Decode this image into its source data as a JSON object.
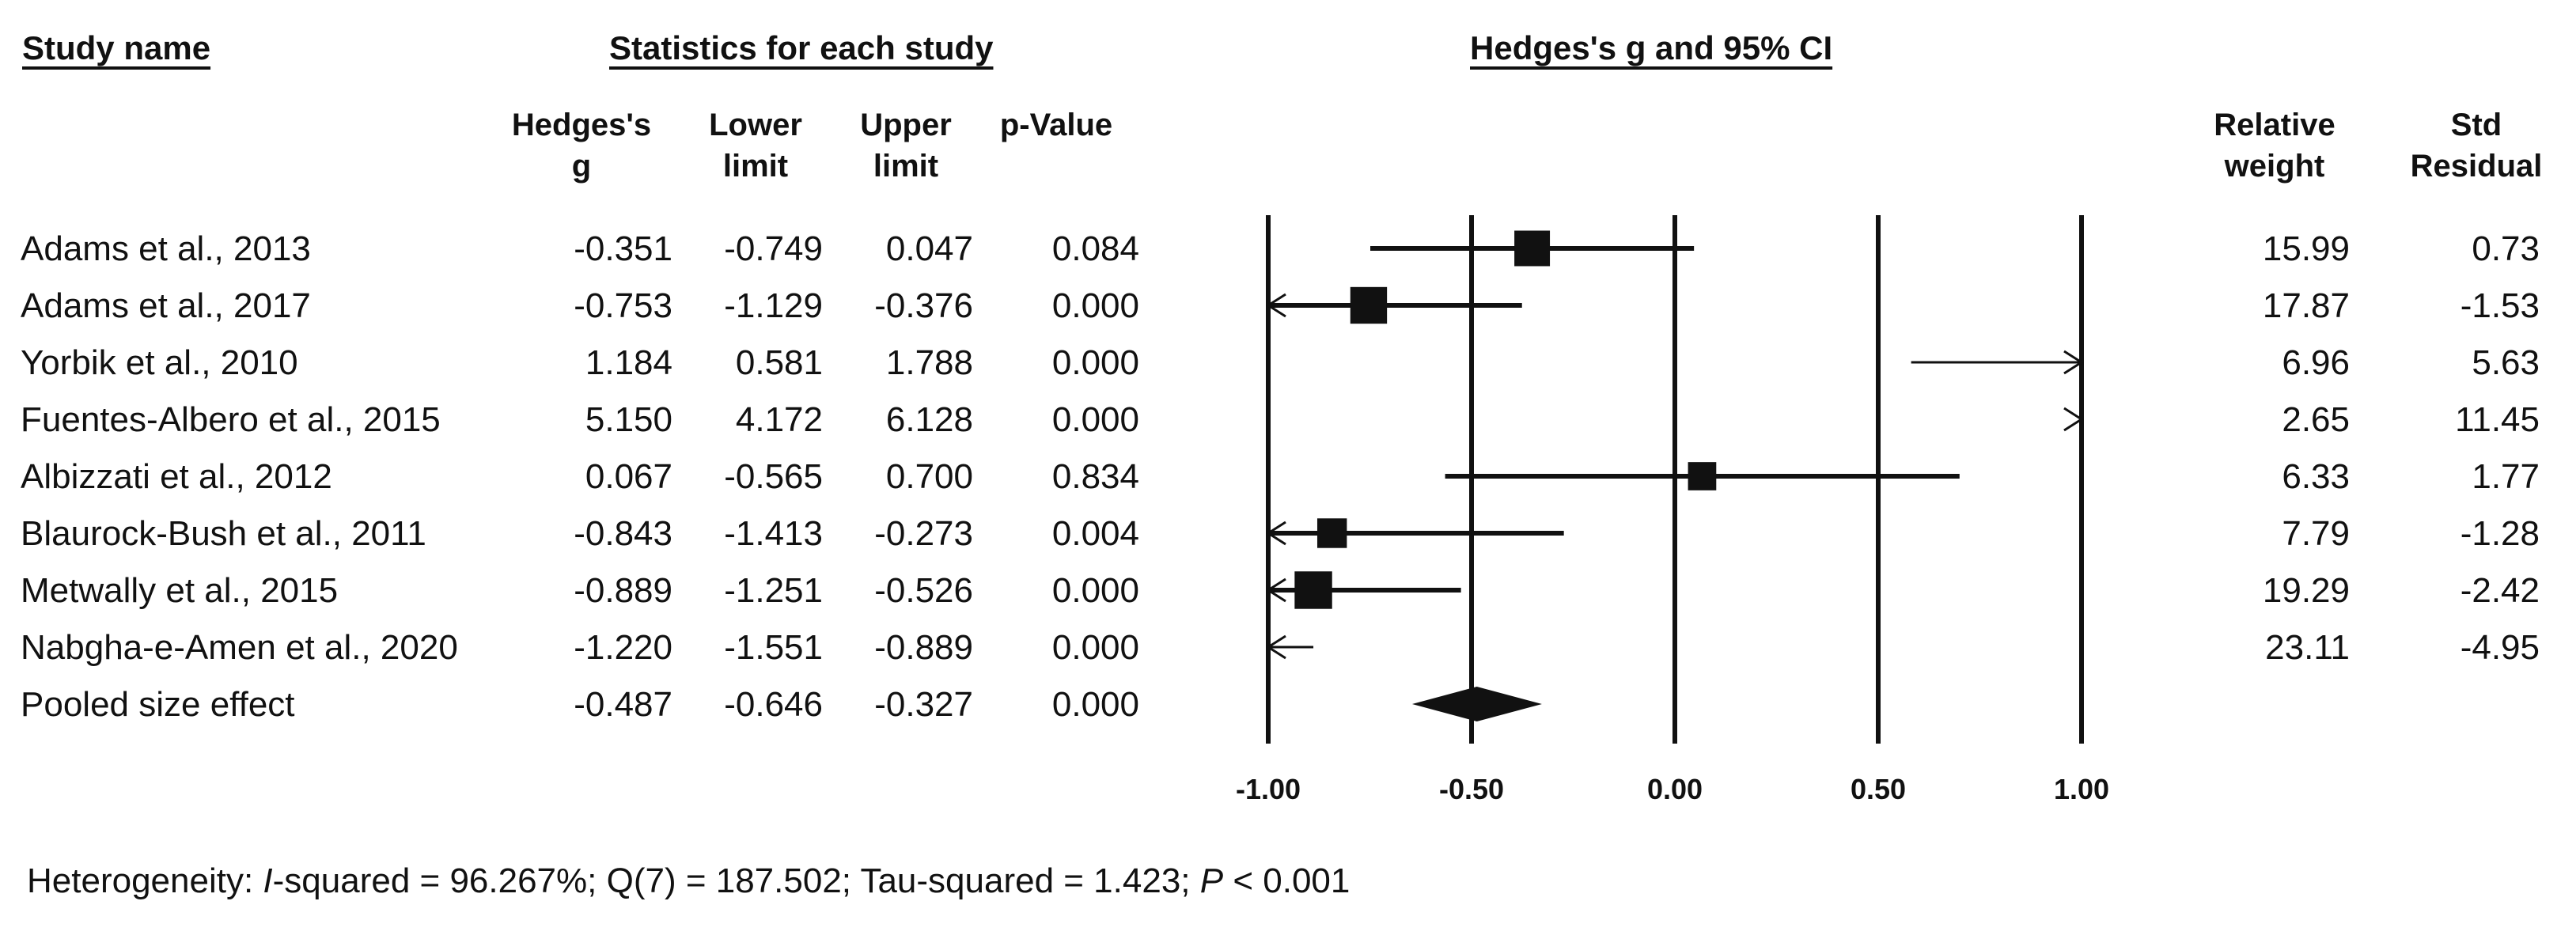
{
  "headers": {
    "study_name": "Study name",
    "statistics": "Statistics for each study",
    "plot_title": "Hedges's g and 95% CI"
  },
  "columns": {
    "g": [
      "Hedges's",
      "g"
    ],
    "lower": [
      "Lower",
      "limit"
    ],
    "upper": [
      "Upper",
      "limit"
    ],
    "p": [
      "",
      "p-Value"
    ],
    "weight": [
      "Relative",
      "weight"
    ],
    "resid": [
      "Std",
      "Residual"
    ]
  },
  "rows": [
    {
      "name": "Adams et al., 2013",
      "g": "-0.351",
      "lower": "-0.749",
      "upper": "0.047",
      "p": "0.084",
      "weight": "15.99",
      "resid": "0.73"
    },
    {
      "name": "Adams et al., 2017",
      "g": "-0.753",
      "lower": "-1.129",
      "upper": "-0.376",
      "p": "0.000",
      "weight": "17.87",
      "resid": "-1.53"
    },
    {
      "name": "Yorbik et al., 2010",
      "g": "1.184",
      "lower": "0.581",
      "upper": "1.788",
      "p": "0.000",
      "weight": "6.96",
      "resid": "5.63"
    },
    {
      "name": "Fuentes-Albero et al., 2015",
      "g": "5.150",
      "lower": "4.172",
      "upper": "6.128",
      "p": "0.000",
      "weight": "2.65",
      "resid": "11.45"
    },
    {
      "name": "Albizzati et al., 2012",
      "g": "0.067",
      "lower": "-0.565",
      "upper": "0.700",
      "p": "0.834",
      "weight": "6.33",
      "resid": "1.77"
    },
    {
      "name": "Blaurock-Bush et al., 2011",
      "g": "-0.843",
      "lower": "-1.413",
      "upper": "-0.273",
      "p": "0.004",
      "weight": "7.79",
      "resid": "-1.28"
    },
    {
      "name": "Metwally et al., 2015",
      "g": "-0.889",
      "lower": "-1.251",
      "upper": "-0.526",
      "p": "0.000",
      "weight": "19.29",
      "resid": "-2.42"
    },
    {
      "name": "Nabgha-e-Amen et al., 2020",
      "g": "-1.220",
      "lower": "-1.551",
      "upper": "-0.889",
      "p": "0.000",
      "weight": "23.11",
      "resid": "-4.95"
    },
    {
      "name": "Pooled size effect",
      "g": "-0.487",
      "lower": "-0.646",
      "upper": "-0.327",
      "p": "0.000",
      "weight": "",
      "resid": ""
    }
  ],
  "footnote": {
    "prefix": "Heterogeneity: ",
    "i": "I",
    "part1": "-squared = 96.267%; Q(7) = 187.502; Tau-squared = 1.423; ",
    "p": "P",
    "part2": " < 0.001"
  },
  "chart_data": {
    "type": "forest",
    "title": "Hedges's g and 95% CI",
    "xlim": [
      -1.0,
      1.0
    ],
    "xticks": [
      -1.0,
      -0.5,
      0.0,
      0.5,
      1.0
    ],
    "xtick_labels": [
      "-1.00",
      "-0.50",
      "0.00",
      "0.50",
      "1.00"
    ],
    "studies": [
      {
        "label": "Adams et al., 2013",
        "g": -0.351,
        "lower": -0.749,
        "upper": 0.047,
        "weight": 15.99
      },
      {
        "label": "Adams et al., 2017",
        "g": -0.753,
        "lower": -1.129,
        "upper": -0.376,
        "weight": 17.87
      },
      {
        "label": "Yorbik et al., 2010",
        "g": 1.184,
        "lower": 0.581,
        "upper": 1.788,
        "weight": 6.96
      },
      {
        "label": "Fuentes-Albero et al., 2015",
        "g": 5.15,
        "lower": 4.172,
        "upper": 6.128,
        "weight": 2.65
      },
      {
        "label": "Albizzati et al., 2012",
        "g": 0.067,
        "lower": -0.565,
        "upper": 0.7,
        "weight": 6.33
      },
      {
        "label": "Blaurock-Bush et al., 2011",
        "g": -0.843,
        "lower": -1.413,
        "upper": -0.273,
        "weight": 7.79
      },
      {
        "label": "Metwally et al., 2015",
        "g": -0.889,
        "lower": -1.251,
        "upper": -0.526,
        "weight": 19.29
      },
      {
        "label": "Nabgha-e-Amen et al., 2020",
        "g": -1.22,
        "lower": -1.551,
        "upper": -0.889,
        "weight": 23.11
      }
    ],
    "pooled": {
      "label": "Pooled size effect",
      "g": -0.487,
      "lower": -0.646,
      "upper": -0.327
    },
    "color": "#111111"
  }
}
